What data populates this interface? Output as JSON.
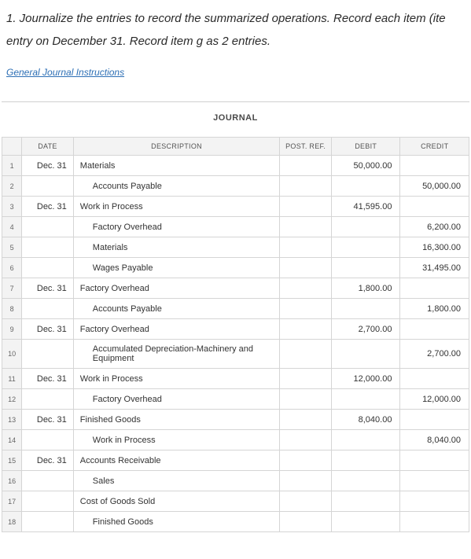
{
  "instructions_line1": "1. Journalize the entries to record the summarized operations. Record each item (ite",
  "instructions_line2": "entry on December 31. Record item g as 2 entries.",
  "link_text": "General Journal Instructions",
  "journal_title": "JOURNAL",
  "headers": {
    "date": "DATE",
    "description": "DESCRIPTION",
    "postref": "POST. REF.",
    "debit": "DEBIT",
    "credit": "CREDIT"
  },
  "rows": [
    {
      "n": "1",
      "date": "Dec. 31",
      "desc": "Materials",
      "indent": false,
      "ref": "",
      "debit": "50,000.00",
      "credit": ""
    },
    {
      "n": "2",
      "date": "",
      "desc": "Accounts Payable",
      "indent": true,
      "ref": "",
      "debit": "",
      "credit": "50,000.00"
    },
    {
      "n": "3",
      "date": "Dec. 31",
      "desc": "Work in Process",
      "indent": false,
      "ref": "",
      "debit": "41,595.00",
      "credit": ""
    },
    {
      "n": "4",
      "date": "",
      "desc": "Factory Overhead",
      "indent": true,
      "ref": "",
      "debit": "",
      "credit": "6,200.00"
    },
    {
      "n": "5",
      "date": "",
      "desc": "Materials",
      "indent": true,
      "ref": "",
      "debit": "",
      "credit": "16,300.00"
    },
    {
      "n": "6",
      "date": "",
      "desc": "Wages Payable",
      "indent": true,
      "ref": "",
      "debit": "",
      "credit": "31,495.00"
    },
    {
      "n": "7",
      "date": "Dec. 31",
      "desc": "Factory Overhead",
      "indent": false,
      "ref": "",
      "debit": "1,800.00",
      "credit": ""
    },
    {
      "n": "8",
      "date": "",
      "desc": "Accounts Payable",
      "indent": true,
      "ref": "",
      "debit": "",
      "credit": "1,800.00"
    },
    {
      "n": "9",
      "date": "Dec. 31",
      "desc": "Factory Overhead",
      "indent": false,
      "ref": "",
      "debit": "2,700.00",
      "credit": ""
    },
    {
      "n": "10",
      "date": "",
      "desc": "Accumulated Depreciation-Machinery and Equipment",
      "indent": true,
      "ref": "",
      "debit": "",
      "credit": "2,700.00"
    },
    {
      "n": "11",
      "date": "Dec. 31",
      "desc": "Work in Process",
      "indent": false,
      "ref": "",
      "debit": "12,000.00",
      "credit": ""
    },
    {
      "n": "12",
      "date": "",
      "desc": "Factory Overhead",
      "indent": true,
      "ref": "",
      "debit": "",
      "credit": "12,000.00"
    },
    {
      "n": "13",
      "date": "Dec. 31",
      "desc": "Finished Goods",
      "indent": false,
      "ref": "",
      "debit": "8,040.00",
      "credit": ""
    },
    {
      "n": "14",
      "date": "",
      "desc": "Work in Process",
      "indent": true,
      "ref": "",
      "debit": "",
      "credit": "8,040.00"
    },
    {
      "n": "15",
      "date": "Dec. 31",
      "desc": "Accounts Receivable",
      "indent": false,
      "ref": "",
      "debit": "",
      "credit": ""
    },
    {
      "n": "16",
      "date": "",
      "desc": "Sales",
      "indent": true,
      "ref": "",
      "debit": "",
      "credit": ""
    },
    {
      "n": "17",
      "date": "",
      "desc": "Cost of Goods Sold",
      "indent": false,
      "ref": "",
      "debit": "",
      "credit": ""
    },
    {
      "n": "18",
      "date": "",
      "desc": "Finished Goods",
      "indent": true,
      "ref": "",
      "debit": "",
      "credit": ""
    }
  ],
  "colors": {
    "header_bg": "#f3f3f3",
    "border": "#d5d5d5",
    "link": "#2d6fb5",
    "text": "#333333"
  }
}
